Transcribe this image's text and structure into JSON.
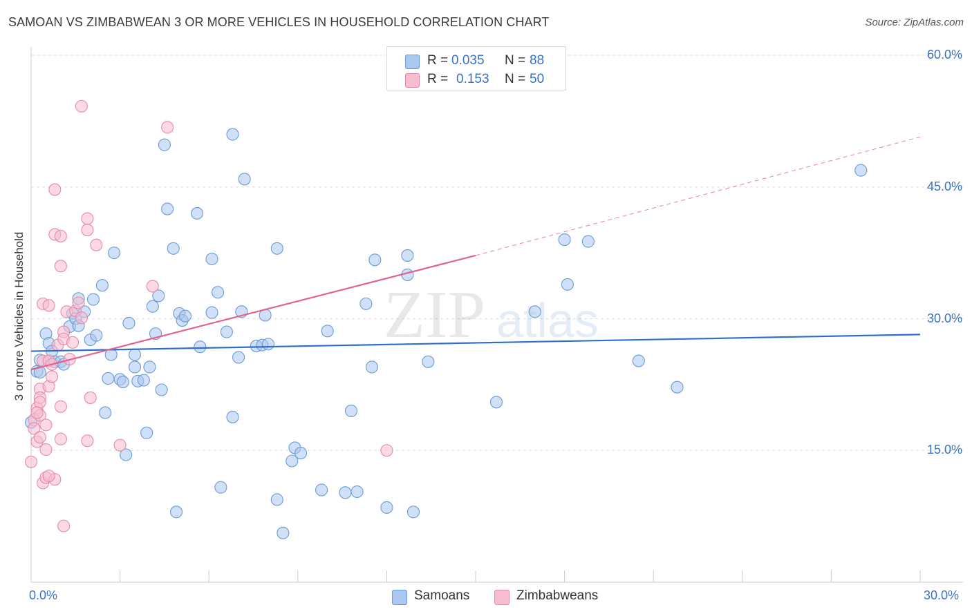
{
  "title": "SAMOAN VS ZIMBABWEAN 3 OR MORE VEHICLES IN HOUSEHOLD CORRELATION CHART",
  "source": "Source: ZipAtlas.com",
  "watermark": {
    "zip": "ZIP",
    "atlas": "atlas"
  },
  "legend": {
    "rows": [
      {
        "r_label": "R =",
        "r_value": "0.035",
        "n_label": "N =",
        "n_value": "88",
        "color": "#a9c7ef",
        "stroke": "#6a9ad8"
      },
      {
        "r_label": "R =",
        "r_value": "0.153",
        "n_label": "N =",
        "n_value": "50",
        "color": "#f7bcd0",
        "stroke": "#e48aa8"
      }
    ]
  },
  "bottom_legend": {
    "samoans": "Samoans",
    "zimbabweans": "Zimbabweans"
  },
  "chart_data": {
    "type": "scatter",
    "title": "SAMOAN VS ZIMBABWEAN 3 OR MORE VEHICLES IN HOUSEHOLD CORRELATION CHART",
    "xlabel": "",
    "ylabel": "3 or more Vehicles in Household",
    "xlim": [
      0,
      30
    ],
    "ylim": [
      0,
      60
    ],
    "x_tick_labels": [
      "0.0%",
      "30.0%"
    ],
    "y_ticks": [
      15,
      30,
      45,
      60
    ],
    "y_tick_labels": [
      "15.0%",
      "30.0%",
      "45.0%",
      "60.0%"
    ],
    "grid": "horizontal dashed",
    "legend_position": "top-center",
    "series": [
      {
        "name": "Samoans",
        "color": "#a9c7ef",
        "stroke": "#6a9ad8",
        "trend_color": "#2f6fcc",
        "trend": {
          "x0": 0,
          "y0": 26.3,
          "x1": 30,
          "y1": 28.2
        },
        "points": [
          [
            0.2,
            24.0
          ],
          [
            0.3,
            25.3
          ],
          [
            0.5,
            28.3
          ],
          [
            0.6,
            27.2
          ],
          [
            0.7,
            26.3
          ],
          [
            0.8,
            25.1
          ],
          [
            1.0,
            25.1
          ],
          [
            1.1,
            24.8
          ],
          [
            1.3,
            29.1
          ],
          [
            1.4,
            30.6
          ],
          [
            1.5,
            30.0
          ],
          [
            1.6,
            32.3
          ],
          [
            1.6,
            29.2
          ],
          [
            1.8,
            30.8
          ],
          [
            2.0,
            27.6
          ],
          [
            2.1,
            32.2
          ],
          [
            2.2,
            28.1
          ],
          [
            2.4,
            33.8
          ],
          [
            2.5,
            19.3
          ],
          [
            2.6,
            23.2
          ],
          [
            2.7,
            25.9
          ],
          [
            2.8,
            37.5
          ],
          [
            3.0,
            23.1
          ],
          [
            3.1,
            22.8
          ],
          [
            3.2,
            14.5
          ],
          [
            3.3,
            29.5
          ],
          [
            3.5,
            25.9
          ],
          [
            3.5,
            24.5
          ],
          [
            3.6,
            22.9
          ],
          [
            3.8,
            23.0
          ],
          [
            3.9,
            17.0
          ],
          [
            4.0,
            24.5
          ],
          [
            4.1,
            31.4
          ],
          [
            4.2,
            28.3
          ],
          [
            4.3,
            32.6
          ],
          [
            4.4,
            21.9
          ],
          [
            4.5,
            49.8
          ],
          [
            4.6,
            42.5
          ],
          [
            4.8,
            38.0
          ],
          [
            4.9,
            8.0
          ],
          [
            5.0,
            30.6
          ],
          [
            5.1,
            29.8
          ],
          [
            5.2,
            30.3
          ],
          [
            5.6,
            42.0
          ],
          [
            5.7,
            26.8
          ],
          [
            6.1,
            30.7
          ],
          [
            6.1,
            36.8
          ],
          [
            6.3,
            33.0
          ],
          [
            6.4,
            10.8
          ],
          [
            6.6,
            28.5
          ],
          [
            6.8,
            18.8
          ],
          [
            6.8,
            51.0
          ],
          [
            7.0,
            25.6
          ],
          [
            7.1,
            30.8
          ],
          [
            7.2,
            45.9
          ],
          [
            7.6,
            26.9
          ],
          [
            7.8,
            27.0
          ],
          [
            7.9,
            30.4
          ],
          [
            8.0,
            27.1
          ],
          [
            8.3,
            38.0
          ],
          [
            8.3,
            9.4
          ],
          [
            8.5,
            5.6
          ],
          [
            8.8,
            13.8
          ],
          [
            8.9,
            15.3
          ],
          [
            9.1,
            14.7
          ],
          [
            9.8,
            10.5
          ],
          [
            10.0,
            28.6
          ],
          [
            10.6,
            10.2
          ],
          [
            10.8,
            19.5
          ],
          [
            11.0,
            10.3
          ],
          [
            11.3,
            31.7
          ],
          [
            11.5,
            24.5
          ],
          [
            11.6,
            36.7
          ],
          [
            12.0,
            8.5
          ],
          [
            12.7,
            37.2
          ],
          [
            12.7,
            35.0
          ],
          [
            12.9,
            8.0
          ],
          [
            13.4,
            25.1
          ],
          [
            15.7,
            20.5
          ],
          [
            17.0,
            30.8
          ],
          [
            18.0,
            39.0
          ],
          [
            18.1,
            33.9
          ],
          [
            18.8,
            38.8
          ],
          [
            20.5,
            25.2
          ],
          [
            21.8,
            22.2
          ],
          [
            28.0,
            46.9
          ],
          [
            0.0,
            18.2
          ],
          [
            0.3,
            23.9
          ]
        ]
      },
      {
        "name": "Zimbabweans",
        "color": "#f7bcd0",
        "stroke": "#e48aa8",
        "trend_color": "#e0628f",
        "trend": {
          "x0": 0,
          "y0": 24.2,
          "x1": 15,
          "y1": 37.2
        },
        "trend_extension": {
          "x0": 15,
          "y0": 37.2,
          "x1": 30,
          "y1": 50.7
        },
        "points": [
          [
            0.0,
            13.7
          ],
          [
            0.1,
            18.5
          ],
          [
            0.1,
            17.5
          ],
          [
            0.2,
            19.8
          ],
          [
            0.2,
            16.0
          ],
          [
            0.3,
            22.0
          ],
          [
            0.3,
            21.0
          ],
          [
            0.3,
            20.5
          ],
          [
            0.3,
            19.0
          ],
          [
            0.4,
            25.2
          ],
          [
            0.4,
            11.3
          ],
          [
            0.4,
            31.7
          ],
          [
            0.5,
            11.9
          ],
          [
            0.5,
            15.1
          ],
          [
            0.5,
            17.9
          ],
          [
            0.6,
            22.3
          ],
          [
            0.6,
            31.5
          ],
          [
            0.6,
            25.2
          ],
          [
            0.7,
            24.8
          ],
          [
            0.7,
            23.4
          ],
          [
            0.8,
            11.7
          ],
          [
            0.8,
            44.7
          ],
          [
            0.8,
            39.6
          ],
          [
            0.9,
            27.0
          ],
          [
            1.0,
            39.4
          ],
          [
            1.0,
            36.0
          ],
          [
            1.0,
            20.0
          ],
          [
            1.0,
            16.3
          ],
          [
            1.1,
            28.5
          ],
          [
            1.1,
            27.7
          ],
          [
            1.1,
            6.4
          ],
          [
            1.2,
            30.8
          ],
          [
            1.3,
            25.4
          ],
          [
            1.4,
            27.3
          ],
          [
            1.5,
            30.9
          ],
          [
            1.6,
            31.8
          ],
          [
            1.7,
            30.1
          ],
          [
            1.7,
            54.2
          ],
          [
            1.9,
            41.4
          ],
          [
            1.9,
            40.1
          ],
          [
            1.9,
            16.1
          ],
          [
            2.0,
            21.0
          ],
          [
            2.2,
            38.4
          ],
          [
            3.0,
            15.6
          ],
          [
            4.1,
            33.7
          ],
          [
            4.6,
            51.8
          ],
          [
            12.0,
            15.0
          ],
          [
            0.3,
            16.5
          ],
          [
            0.2,
            19.3
          ],
          [
            0.6,
            12.1
          ]
        ]
      }
    ]
  }
}
